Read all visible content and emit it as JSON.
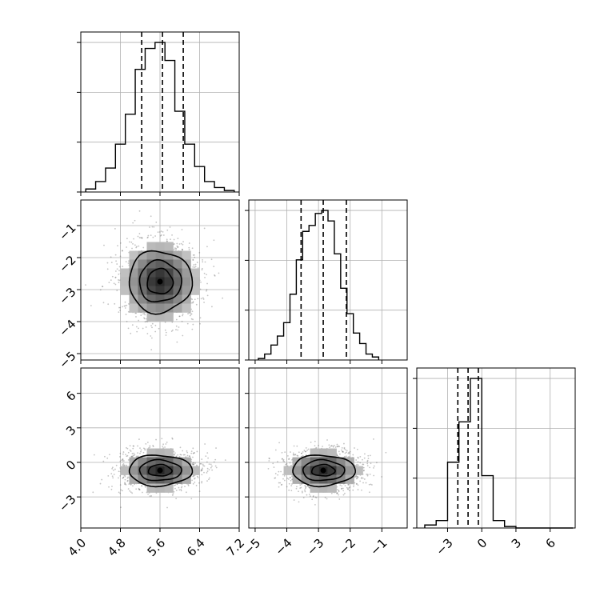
{
  "chart_data": {
    "type": "corner",
    "parameters": [
      {
        "label": "",
        "ticks": [
          "4.0",
          "4.8",
          "5.6",
          "6.4",
          "7.2"
        ],
        "range": [
          4.0,
          7.2
        ]
      },
      {
        "label": "",
        "ticks": [
          "−5",
          "−4",
          "−3",
          "−2",
          "−1"
        ],
        "range": [
          -5.2,
          -0.2
        ]
      },
      {
        "label": "",
        "ticks": [
          "−3",
          "0",
          "3",
          "6"
        ],
        "range": [
          -5.7,
          8.2
        ]
      }
    ],
    "grid": true,
    "histograms": [
      {
        "parameter": 0,
        "bins": [
          4.2,
          4.4,
          4.6,
          4.8,
          5.0,
          5.2,
          5.4,
          5.6,
          5.8,
          6.0,
          6.2,
          6.4,
          6.6,
          6.8,
          7.0
        ],
        "counts": [
          0.02,
          0.07,
          0.16,
          0.32,
          0.52,
          0.82,
          0.96,
          1.0,
          0.88,
          0.54,
          0.32,
          0.17,
          0.07,
          0.03,
          0.01
        ],
        "quantiles": [
          5.23,
          5.65,
          6.07
        ]
      },
      {
        "parameter": 1,
        "bins": [
          -4.8,
          -4.6,
          -4.4,
          -4.2,
          -4.0,
          -3.8,
          -3.6,
          -3.4,
          -3.2,
          -3.0,
          -2.8,
          -2.6,
          -2.4,
          -2.2,
          -2.0,
          -1.8,
          -1.6,
          -1.4,
          -1.2
        ],
        "counts": [
          0.01,
          0.04,
          0.1,
          0.16,
          0.25,
          0.44,
          0.67,
          0.86,
          0.9,
          0.98,
          1.0,
          0.93,
          0.71,
          0.48,
          0.31,
          0.18,
          0.11,
          0.04,
          0.02
        ],
        "quantiles": [
          -3.55,
          -2.85,
          -2.12
        ]
      },
      {
        "parameter": 2,
        "bins": [
          -4.5,
          -3.5,
          -2.5,
          -1.5,
          -0.5,
          0.5,
          1.5,
          2.5,
          3.5,
          4.5,
          5.5,
          6.5,
          7.5
        ],
        "counts": [
          0.02,
          0.05,
          0.44,
          0.71,
          1.0,
          0.35,
          0.05,
          0.01,
          0.0,
          0.0,
          0.0,
          0.0,
          0.0
        ],
        "quantiles": [
          -2.1,
          -1.2,
          -0.3
        ]
      }
    ],
    "scatter_2d": [
      {
        "x_parameter": 0,
        "y_parameter": 1,
        "center": [
          5.6,
          -2.75
        ],
        "contour_sigma": [
          0.55,
          0.9,
          1.35
        ]
      },
      {
        "x_parameter": 0,
        "y_parameter": 2,
        "center": [
          5.6,
          -0.7
        ],
        "contour_sigma": [
          0.5,
          0.9,
          1.35
        ]
      },
      {
        "x_parameter": 1,
        "y_parameter": 2,
        "center": [
          -2.85,
          -0.7
        ],
        "contour_sigma": [
          0.5,
          0.9,
          1.35
        ]
      }
    ]
  }
}
